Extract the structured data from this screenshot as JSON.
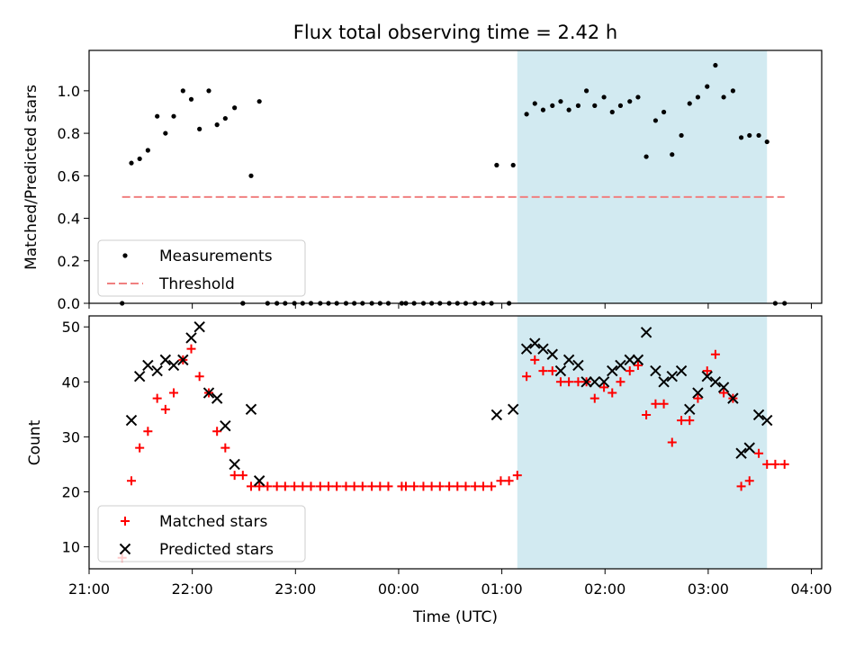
{
  "chart_data": [
    {
      "type": "scatter",
      "title": "Flux total observing time = 2.42 h",
      "xlabel": "",
      "ylabel": "Matched/Predicted stars",
      "xlim": [
        21.0,
        28.1
      ],
      "ylim": [
        0.0,
        1.19
      ],
      "yticks": [
        0.0,
        0.2,
        0.4,
        0.6,
        0.8,
        1.0
      ],
      "ytick_labels": [
        "0.0",
        "0.2",
        "0.4",
        "0.6",
        "0.8",
        "1.0"
      ],
      "xticks": [
        21,
        22,
        23,
        24,
        25,
        26,
        27,
        28
      ],
      "grid": false,
      "legend_position": "lower-left",
      "shaded_span": {
        "x": [
          25.15,
          27.57
        ],
        "color": "#add8e6"
      },
      "series": [
        {
          "name": "Measurements",
          "marker": "dot",
          "color": "#000000",
          "x": [
            21.32,
            21.41,
            21.49,
            21.57,
            21.66,
            21.74,
            21.82,
            21.91,
            21.99,
            22.07,
            22.16,
            22.24,
            22.32,
            22.41,
            22.49,
            22.57,
            22.65,
            24.95,
            25.11,
            25.24,
            25.32,
            25.4,
            25.49,
            25.57,
            25.65,
            25.74,
            25.82,
            25.9,
            25.99,
            26.07,
            26.15,
            26.24,
            26.32,
            26.4,
            26.49,
            26.57,
            26.65,
            26.74,
            26.82,
            26.9,
            26.99,
            27.07,
            27.15,
            27.24,
            27.32,
            27.4,
            27.49,
            27.57
          ],
          "y": [
            0.0,
            0.66,
            0.68,
            0.72,
            0.88,
            0.8,
            0.88,
            1.0,
            0.96,
            0.82,
            1.0,
            0.84,
            0.87,
            0.92,
            0.0,
            0.6,
            0.95,
            0.65,
            0.65,
            0.89,
            0.94,
            0.91,
            0.93,
            0.95,
            0.91,
            0.93,
            1.0,
            0.93,
            0.97,
            0.9,
            0.93,
            0.95,
            0.97,
            0.69,
            0.86,
            0.9,
            0.7,
            0.79,
            0.94,
            0.97,
            1.02,
            1.12,
            0.97,
            1.0,
            0.78,
            0.79,
            0.79,
            0.76
          ]
        },
        {
          "name": "Measurements",
          "marker": "dot",
          "color": "#000000",
          "x": [
            22.49,
            22.73,
            22.82,
            22.9,
            22.99,
            23.07,
            23.15,
            23.24,
            23.32,
            23.4,
            23.49,
            23.57,
            23.65,
            23.74,
            23.82,
            23.9,
            24.03,
            24.07,
            24.15,
            24.24,
            24.32,
            24.4,
            24.49,
            24.57,
            24.65,
            24.74,
            24.82,
            24.9,
            25.07,
            27.65,
            27.74
          ],
          "y": [
            0.0,
            0.0,
            0.0,
            0.0,
            0.0,
            0.0,
            0.0,
            0.0,
            0.0,
            0.0,
            0.0,
            0.0,
            0.0,
            0.0,
            0.0,
            0.0,
            0.0,
            0.0,
            0.0,
            0.0,
            0.0,
            0.0,
            0.0,
            0.0,
            0.0,
            0.0,
            0.0,
            0.0,
            0.0,
            0.0,
            0.0
          ],
          "hidden_in_legend": true
        },
        {
          "name": "Threshold",
          "type": "line",
          "style": "dashed",
          "color": "#f08080",
          "x": [
            21.32,
            27.74
          ],
          "y": [
            0.5,
            0.5
          ]
        }
      ],
      "legend": [
        "Measurements",
        "Threshold"
      ]
    },
    {
      "type": "scatter",
      "title": "",
      "xlabel": "Time (UTC)",
      "ylabel": "Count",
      "xlim": [
        21.0,
        28.1
      ],
      "ylim": [
        6.0,
        52.0
      ],
      "yticks": [
        10,
        20,
        30,
        40,
        50
      ],
      "ytick_labels": [
        "10",
        "20",
        "30",
        "40",
        "50"
      ],
      "xticks": [
        21,
        22,
        23,
        24,
        25,
        26,
        27,
        28
      ],
      "xtick_labels": [
        "21:00",
        "22:00",
        "23:00",
        "00:00",
        "01:00",
        "02:00",
        "03:00",
        "04:00"
      ],
      "grid": false,
      "legend_position": "lower-left",
      "shaded_span": {
        "x": [
          25.15,
          27.57
        ],
        "color": "#add8e6"
      },
      "series": [
        {
          "name": "Matched stars",
          "marker": "plus",
          "color": "#ff0000",
          "x": [
            21.32,
            21.41,
            21.49,
            21.57,
            21.66,
            21.74,
            21.82,
            21.91,
            21.99,
            22.07,
            22.16,
            22.24,
            22.32,
            22.41,
            22.49,
            22.57,
            22.65,
            22.73,
            22.82,
            22.9,
            22.99,
            23.07,
            23.15,
            23.24,
            23.32,
            23.4,
            23.49,
            23.57,
            23.65,
            23.74,
            23.82,
            23.9,
            24.03,
            24.07,
            24.15,
            24.24,
            24.32,
            24.4,
            24.49,
            24.57,
            24.65,
            24.74,
            24.82,
            24.9,
            24.99,
            25.07,
            25.15,
            25.24,
            25.32,
            25.4,
            25.49,
            25.57,
            25.65,
            25.74,
            25.82,
            25.9,
            25.99,
            26.07,
            26.15,
            26.24,
            26.32,
            26.4,
            26.49,
            26.57,
            26.65,
            26.74,
            26.82,
            26.9,
            26.99,
            27.07,
            27.15,
            27.24,
            27.32,
            27.4,
            27.49,
            27.57,
            27.65,
            27.74
          ],
          "y": [
            8,
            22,
            28,
            31,
            37,
            35,
            38,
            44,
            46,
            41,
            38,
            31,
            28,
            23,
            23,
            21,
            21,
            21,
            21,
            21,
            21,
            21,
            21,
            21,
            21,
            21,
            21,
            21,
            21,
            21,
            21,
            21,
            21,
            21,
            21,
            21,
            21,
            21,
            21,
            21,
            21,
            21,
            21,
            21,
            22,
            22,
            23,
            41,
            44,
            42,
            42,
            40,
            40,
            40,
            40,
            37,
            39,
            38,
            40,
            42,
            43,
            34,
            36,
            36,
            29,
            33,
            33,
            37,
            42,
            45,
            38,
            37,
            21,
            22,
            27,
            25,
            25,
            25
          ]
        },
        {
          "name": "Predicted stars",
          "marker": "x",
          "color": "#000000",
          "x": [
            21.41,
            21.49,
            21.57,
            21.66,
            21.74,
            21.82,
            21.91,
            21.99,
            22.07,
            22.16,
            22.24,
            22.32,
            22.41,
            22.57,
            22.65,
            24.95,
            25.11,
            25.24,
            25.32,
            25.4,
            25.49,
            25.57,
            25.65,
            25.74,
            25.82,
            25.9,
            25.99,
            26.07,
            26.15,
            26.24,
            26.32,
            26.4,
            26.49,
            26.57,
            26.65,
            26.74,
            26.82,
            26.9,
            26.99,
            27.07,
            27.15,
            27.24,
            27.32,
            27.4,
            27.49,
            27.57
          ],
          "y": [
            33,
            41,
            43,
            42,
            44,
            43,
            44,
            48,
            50,
            38,
            37,
            32,
            25,
            35,
            22,
            34,
            35,
            46,
            47,
            46,
            45,
            42,
            44,
            43,
            40,
            40,
            40,
            42,
            43,
            44,
            44,
            49,
            42,
            40,
            41,
            42,
            35,
            38,
            41,
            40,
            39,
            37,
            27,
            28,
            34,
            33
          ]
        }
      ],
      "legend": [
        "Matched stars",
        "Predicted stars"
      ]
    }
  ]
}
